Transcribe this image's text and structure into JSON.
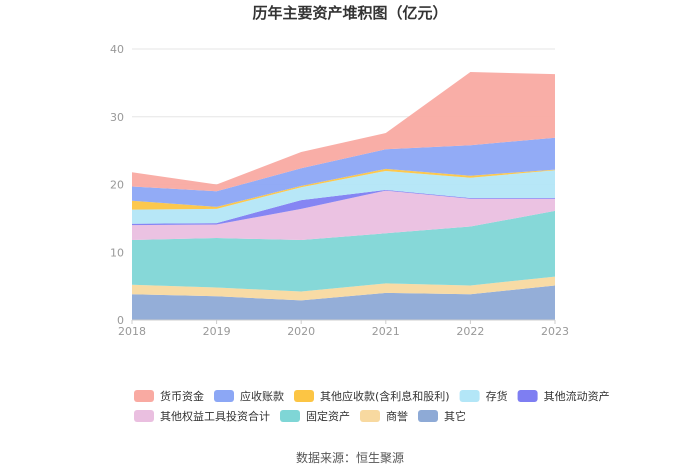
{
  "chart_data": {
    "type": "area",
    "stacked": true,
    "title": "历年主要资产堆积图（亿元）",
    "x": [
      "2018",
      "2019",
      "2020",
      "2021",
      "2022",
      "2023"
    ],
    "ylim": [
      0,
      40
    ],
    "yticks": [
      "0",
      "10",
      "20",
      "30",
      "40"
    ],
    "grid": true,
    "legend_position": "bottom",
    "series": [
      {
        "name": "其它",
        "color": "#8eaad6",
        "values": [
          3.8,
          3.5,
          2.9,
          4.0,
          3.8,
          5.1
        ]
      },
      {
        "name": "商誉",
        "color": "#f8d9a0",
        "values": [
          1.4,
          1.3,
          1.3,
          1.4,
          1.3,
          1.3
        ]
      },
      {
        "name": "固定资产",
        "color": "#7fd6d6",
        "values": [
          6.6,
          7.3,
          7.6,
          7.4,
          8.7,
          9.7
        ]
      },
      {
        "name": "其他权益工具投资合计",
        "color": "#eabfe0",
        "values": [
          2.2,
          2.0,
          4.6,
          6.3,
          4.1,
          1.8
        ]
      },
      {
        "name": "其他流动资产",
        "color": "#7e7ef2",
        "values": [
          0.2,
          0.2,
          1.3,
          0.1,
          0.1,
          0.1
        ]
      },
      {
        "name": "存货",
        "color": "#b3e6f7",
        "values": [
          2.1,
          2.1,
          1.9,
          2.8,
          3.0,
          4.1
        ]
      },
      {
        "name": "其他应收款(含利息和股利)",
        "color": "#fcc544",
        "values": [
          1.3,
          0.3,
          0.2,
          0.3,
          0.3,
          0.1
        ]
      },
      {
        "name": "应收账款",
        "color": "#8ca7f5",
        "values": [
          2.1,
          2.3,
          2.6,
          2.9,
          4.5,
          4.7
        ]
      },
      {
        "name": "货币资金",
        "color": "#f9aaa2",
        "values": [
          2.1,
          1.0,
          2.4,
          2.4,
          10.8,
          9.4
        ]
      }
    ],
    "legend_order": [
      "货币资金",
      "应收账款",
      "其他应收款(含利息和股利)",
      "存货",
      "其他流动资产",
      "其他权益工具投资合计",
      "固定资产",
      "商誉",
      "其它"
    ]
  },
  "footer": {
    "source": "数据来源：恒生聚源"
  }
}
